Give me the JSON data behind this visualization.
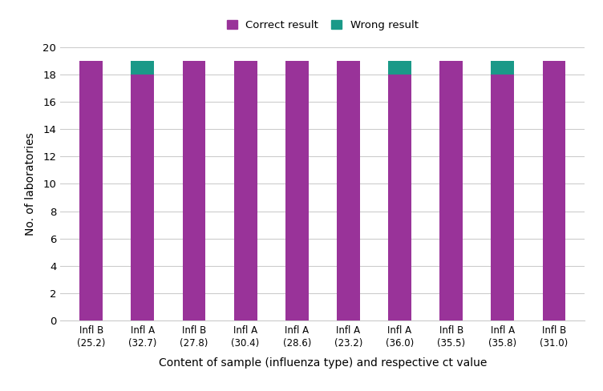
{
  "categories": [
    "Infl B\n(25.2)",
    "Infl A\n(32.7)",
    "Infl B\n(27.8)",
    "Infl A\n(30.4)",
    "Infl A\n(28.6)",
    "Infl A\n(23.2)",
    "Infl A\n(36.0)",
    "Infl B\n(35.5)",
    "Infl A\n(35.8)",
    "Infl B\n(31.0)"
  ],
  "correct": [
    19,
    18,
    19,
    19,
    19,
    19,
    18,
    19,
    18,
    19
  ],
  "wrong": [
    0,
    1,
    0,
    0,
    0,
    0,
    1,
    0,
    1,
    0
  ],
  "correct_color": "#993399",
  "wrong_color": "#1a9988",
  "xlabel": "Content of sample (influenza type) and respective ct value",
  "ylabel": "No. of laboratories",
  "ylim": [
    0,
    20
  ],
  "yticks": [
    0,
    2,
    4,
    6,
    8,
    10,
    12,
    14,
    16,
    18,
    20
  ],
  "legend_correct": "Correct result",
  "legend_wrong": "Wrong result",
  "background_color": "#ffffff",
  "grid_color": "#cccccc",
  "bar_width": 0.45,
  "figsize": [
    7.52,
    4.88
  ],
  "dpi": 100
}
